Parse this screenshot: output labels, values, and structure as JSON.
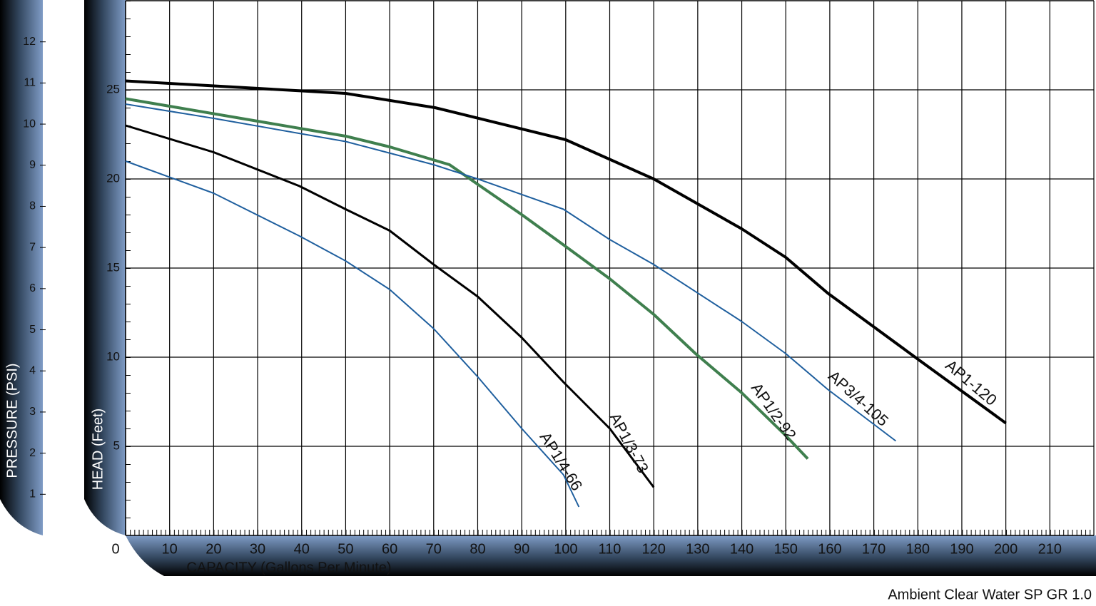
{
  "chart_data": {
    "type": "line",
    "x_label": "CAPACITY (Gallons Per Minute)",
    "y_label": "HEAD (Feet)",
    "y2_label": "PRESSURE (PSI)",
    "note": "Ambient Clear Water SP GR 1.0",
    "xlim": [
      0,
      220
    ],
    "ylim": [
      0,
      30
    ],
    "y2lim": [
      0,
      13
    ],
    "xticks": [
      0,
      10,
      20,
      30,
      40,
      50,
      60,
      70,
      80,
      90,
      100,
      110,
      120,
      130,
      140,
      150,
      160,
      170,
      180,
      190,
      200,
      210
    ],
    "yticks": [
      5,
      10,
      15,
      20,
      25
    ],
    "y2ticks": [
      1,
      2,
      3,
      4,
      5,
      6,
      7,
      8,
      9,
      10,
      11,
      12
    ],
    "grid": true,
    "series": [
      {
        "name": "AP1/4-66",
        "color": "#1f5f9e",
        "line_width": 2,
        "x": [
          0,
          20,
          39.5,
          50,
          60,
          70,
          80,
          90,
          99.5,
          103
        ],
        "values": [
          21.0,
          19.2,
          16.8,
          15.4,
          13.8,
          11.6,
          8.9,
          6.0,
          3.4,
          1.6
        ]
      },
      {
        "name": "AP1/3-73",
        "color": "#000000",
        "line_width": 3,
        "x": [
          0,
          20,
          39.5,
          50,
          60,
          70,
          80,
          90,
          99.5,
          110,
          120
        ],
        "values": [
          23.0,
          21.5,
          19.6,
          18.3,
          17.1,
          15.2,
          13.4,
          11.1,
          8.6,
          6.0,
          2.7
        ]
      },
      {
        "name": "AP1/2-92",
        "color": "#3f7f4e",
        "line_width": 4,
        "x": [
          0,
          50,
          60,
          73.6,
          80,
          90,
          99.5,
          110,
          120,
          129.5,
          140,
          150,
          155
        ],
        "values": [
          24.5,
          22.4,
          21.8,
          20.8,
          19.7,
          18.0,
          16.3,
          14.4,
          12.4,
          10.2,
          8.0,
          5.6,
          4.3
        ]
      },
      {
        "name": "AP3/4-105",
        "color": "#1f5f9e",
        "line_width": 2,
        "x": [
          0,
          20,
          50,
          70,
          80,
          99.5,
          110,
          120,
          140,
          150,
          159.5,
          175
        ],
        "values": [
          24.2,
          23.4,
          22.1,
          20.8,
          20.0,
          18.3,
          16.6,
          15.2,
          12.0,
          10.2,
          8.2,
          5.3
        ]
      },
      {
        "name": "AP1-120",
        "color": "#000000",
        "line_width": 4,
        "x": [
          0,
          50,
          70.3,
          100,
          120,
          140,
          150,
          159.5,
          180.5,
          200
        ],
        "values": [
          25.5,
          24.8,
          24.0,
          22.2,
          20.0,
          17.2,
          15.6,
          13.6,
          9.8,
          6.3
        ]
      }
    ]
  }
}
